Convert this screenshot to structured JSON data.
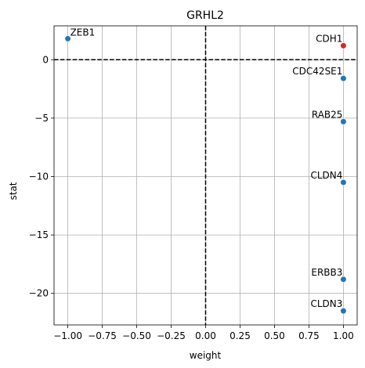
{
  "chart_data": {
    "type": "scatter",
    "title": "GRHL2",
    "xlabel": "weight",
    "ylabel": "stat",
    "xlim": [
      -1.1,
      1.1
    ],
    "ylim": [
      -22.7,
      2.9
    ],
    "grid": true,
    "x_ticks": [
      -1.0,
      -0.75,
      -0.5,
      -0.25,
      0.0,
      0.25,
      0.5,
      0.75,
      1.0
    ],
    "x_tick_labels": [
      "−1.00",
      "−0.75",
      "−0.50",
      "−0.25",
      "0.00",
      "0.25",
      "0.50",
      "0.75",
      "1.00"
    ],
    "y_ticks": [
      0,
      -5,
      -10,
      -15,
      -20
    ],
    "y_tick_labels": [
      "0",
      "−5",
      "−10",
      "−15",
      "−20"
    ],
    "reference_lines": {
      "x": 0,
      "y": 0,
      "style": "dashed",
      "color": "#000000"
    },
    "points": [
      {
        "label": "ZEB1",
        "x": -1.0,
        "y": 1.8,
        "color": "#1f77b4",
        "label_side": "right"
      },
      {
        "label": "CDH1",
        "x": 1.0,
        "y": 1.2,
        "color": "#d62728",
        "label_side": "left"
      },
      {
        "label": "CDC42SE1",
        "x": 1.0,
        "y": -1.6,
        "color": "#1f77b4",
        "label_side": "left"
      },
      {
        "label": "RAB25",
        "x": 1.0,
        "y": -5.3,
        "color": "#1f77b4",
        "label_side": "left"
      },
      {
        "label": "CLDN4",
        "x": 1.0,
        "y": -10.5,
        "color": "#1f77b4",
        "label_side": "left"
      },
      {
        "label": "ERBB3",
        "x": 1.0,
        "y": -18.8,
        "color": "#1f77b4",
        "label_side": "left"
      },
      {
        "label": "CLDN3",
        "x": 1.0,
        "y": -21.5,
        "color": "#1f77b4",
        "label_side": "left"
      }
    ]
  }
}
